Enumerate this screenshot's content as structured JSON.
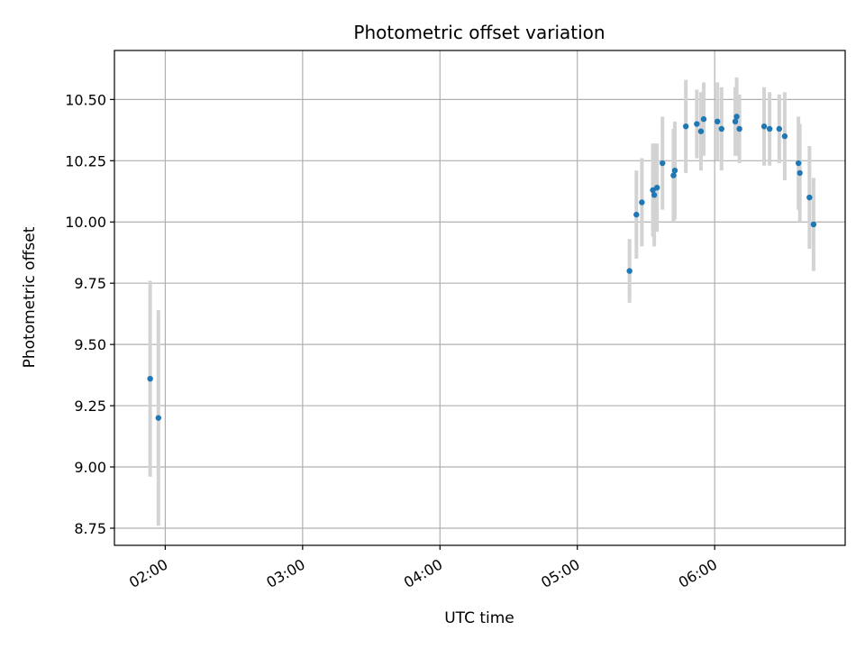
{
  "chart_data": {
    "type": "scatter",
    "title": "Photometric offset variation",
    "xlabel": "UTC time",
    "ylabel": "Photometric offset",
    "grid": true,
    "x_unit": "hours (UTC)",
    "xlim": [
      1.63,
      6.95
    ],
    "ylim": [
      8.68,
      10.7
    ],
    "x_ticks": [
      {
        "value": 2.0,
        "label": "02:00"
      },
      {
        "value": 3.0,
        "label": "03:00"
      },
      {
        "value": 4.0,
        "label": "04:00"
      },
      {
        "value": 5.0,
        "label": "05:00"
      },
      {
        "value": 6.0,
        "label": "06:00"
      }
    ],
    "y_ticks": [
      {
        "value": 8.75,
        "label": "8.75"
      },
      {
        "value": 9.0,
        "label": "9.00"
      },
      {
        "value": 9.25,
        "label": "9.25"
      },
      {
        "value": 9.5,
        "label": "9.50"
      },
      {
        "value": 9.75,
        "label": "9.75"
      },
      {
        "value": 10.0,
        "label": "10.00"
      },
      {
        "value": 10.25,
        "label": "10.25"
      },
      {
        "value": 10.5,
        "label": "10.50"
      }
    ],
    "colors": {
      "point": "#1f77b4",
      "error": "#d3d3d3",
      "grid": "#b0b0b0",
      "frame": "#000000"
    },
    "points": [
      {
        "x": 1.89,
        "y": 9.36,
        "err": 0.4
      },
      {
        "x": 1.95,
        "y": 9.2,
        "err": 0.44
      },
      {
        "x": 5.38,
        "y": 9.8,
        "err": 0.13
      },
      {
        "x": 5.43,
        "y": 10.03,
        "err": 0.18
      },
      {
        "x": 5.47,
        "y": 10.08,
        "err": 0.18
      },
      {
        "x": 5.55,
        "y": 10.13,
        "err": 0.19
      },
      {
        "x": 5.56,
        "y": 10.11,
        "err": 0.21
      },
      {
        "x": 5.58,
        "y": 10.14,
        "err": 0.18
      },
      {
        "x": 5.62,
        "y": 10.24,
        "err": 0.19
      },
      {
        "x": 5.7,
        "y": 10.19,
        "err": 0.19
      },
      {
        "x": 5.71,
        "y": 10.21,
        "err": 0.2
      },
      {
        "x": 5.79,
        "y": 10.39,
        "err": 0.19
      },
      {
        "x": 5.87,
        "y": 10.4,
        "err": 0.14
      },
      {
        "x": 5.9,
        "y": 10.37,
        "err": 0.16
      },
      {
        "x": 5.92,
        "y": 10.42,
        "err": 0.15
      },
      {
        "x": 6.02,
        "y": 10.41,
        "err": 0.16
      },
      {
        "x": 6.05,
        "y": 10.38,
        "err": 0.17
      },
      {
        "x": 6.15,
        "y": 10.41,
        "err": 0.14
      },
      {
        "x": 6.16,
        "y": 10.43,
        "err": 0.16
      },
      {
        "x": 6.18,
        "y": 10.38,
        "err": 0.14
      },
      {
        "x": 6.36,
        "y": 10.39,
        "err": 0.16
      },
      {
        "x": 6.4,
        "y": 10.38,
        "err": 0.15
      },
      {
        "x": 6.47,
        "y": 10.38,
        "err": 0.14
      },
      {
        "x": 6.51,
        "y": 10.35,
        "err": 0.18
      },
      {
        "x": 6.61,
        "y": 10.24,
        "err": 0.19
      },
      {
        "x": 6.62,
        "y": 10.2,
        "err": 0.2
      },
      {
        "x": 6.69,
        "y": 10.1,
        "err": 0.21
      },
      {
        "x": 6.72,
        "y": 9.99,
        "err": 0.19
      }
    ]
  }
}
